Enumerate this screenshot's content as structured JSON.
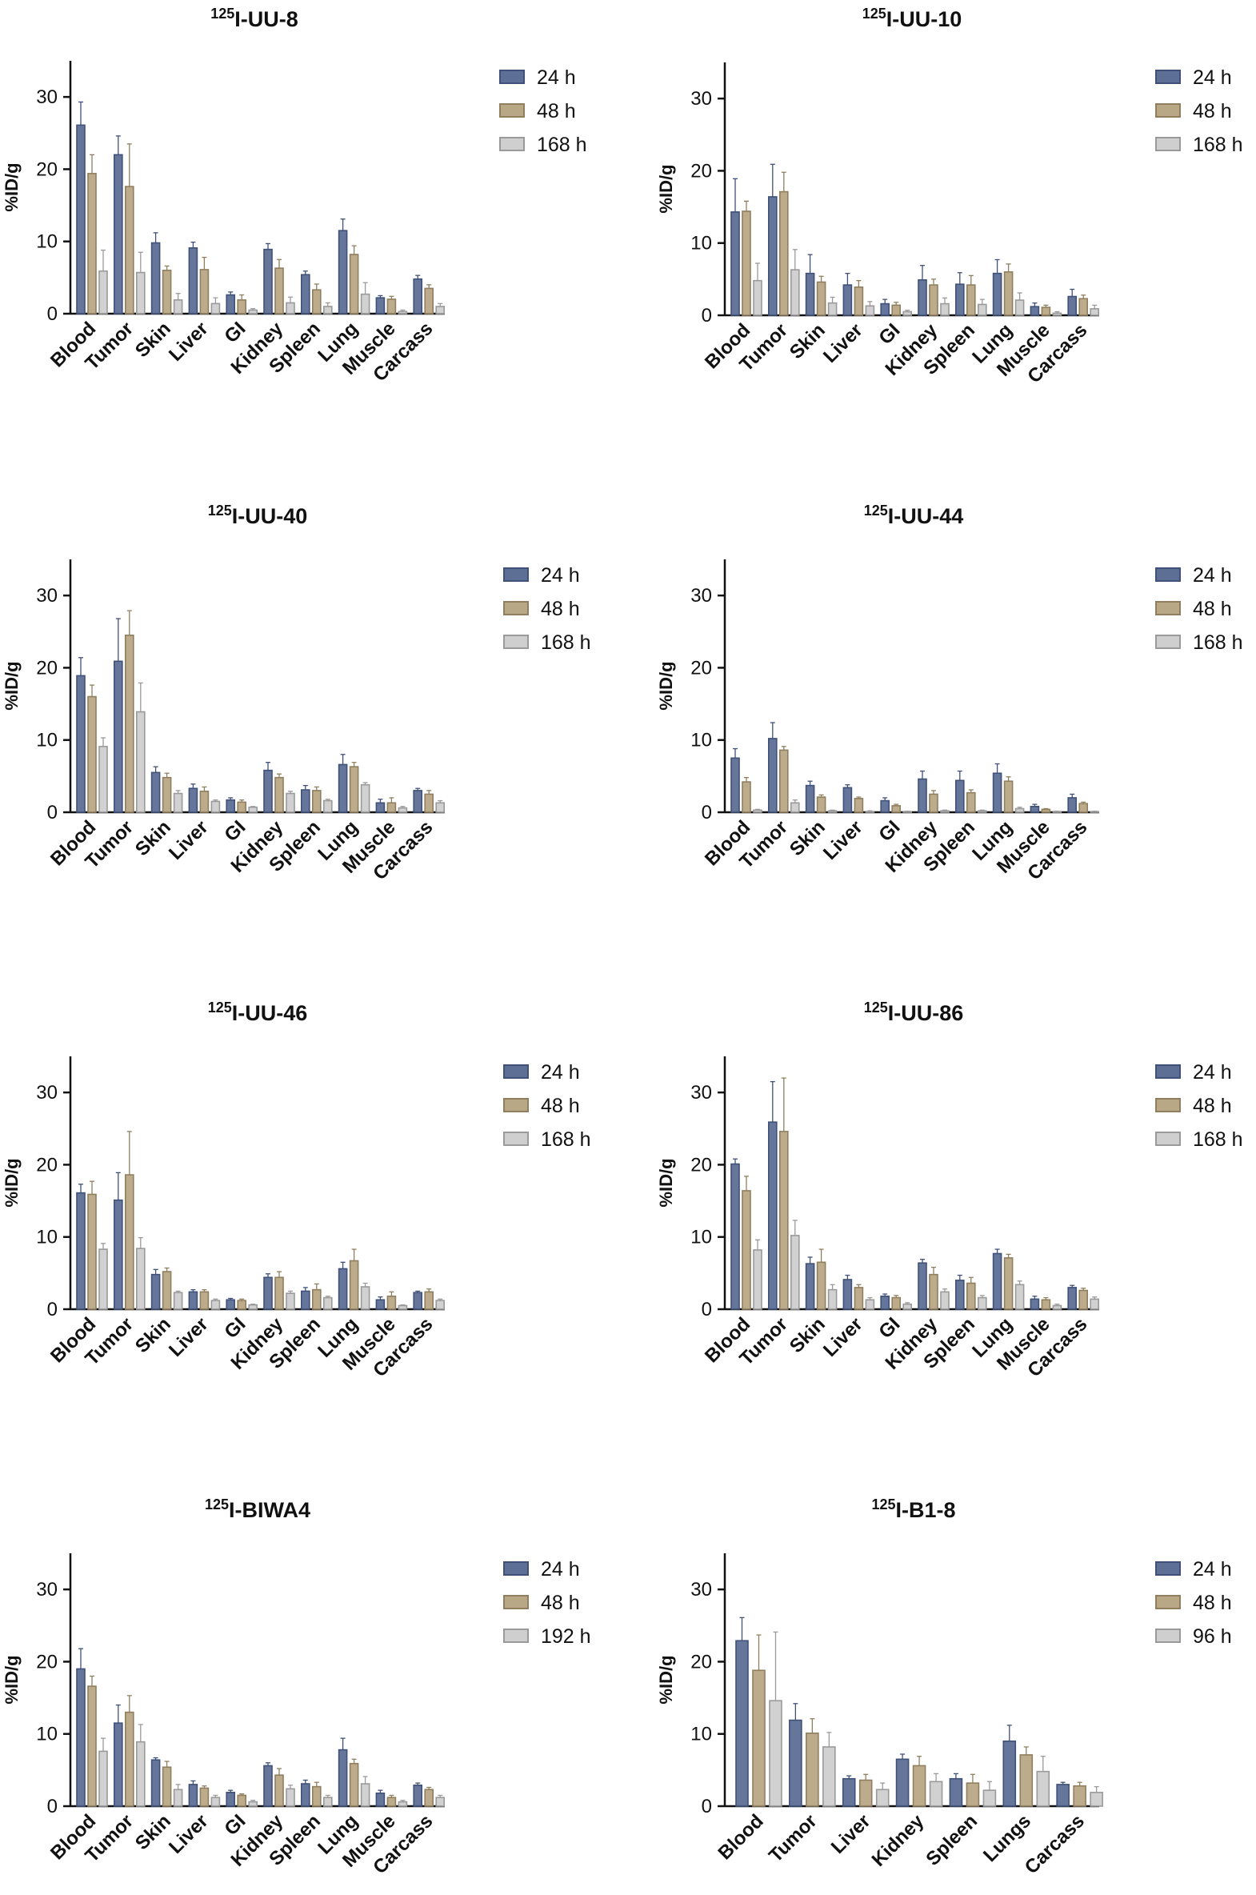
{
  "colors": {
    "24h": "#5e6f96",
    "24h_edge": "#3f5178",
    "48h": "#b9a886",
    "48h_edge": "#8f7f5f",
    "third": "#cfcfcf",
    "third_edge": "#9a9a9a",
    "axis": "#111111"
  },
  "chart_data": [
    {
      "type": "bar",
      "title_sup": "125",
      "title_main": "I-UU-8",
      "ylabel": "%ID/g",
      "ylim": [
        0,
        35
      ],
      "yticks": [
        0,
        10,
        20,
        30
      ],
      "categories": [
        "Blood",
        "Tumor",
        "Skin",
        "Liver",
        "GI",
        "Kidney",
        "Spleen",
        "Lung",
        "Muscle",
        "Carcass"
      ],
      "series": [
        {
          "name": "24 h",
          "values": [
            26.1,
            22.0,
            9.8,
            9.1,
            2.6,
            8.9,
            5.4,
            11.5,
            2.2,
            4.8
          ],
          "errors": [
            3.2,
            2.6,
            1.4,
            0.8,
            0.4,
            0.8,
            0.5,
            1.6,
            0.3,
            0.5
          ]
        },
        {
          "name": "48 h",
          "values": [
            19.4,
            17.6,
            6.0,
            6.1,
            1.9,
            6.3,
            3.3,
            8.2,
            2.0,
            3.5
          ],
          "errors": [
            2.6,
            5.9,
            0.6,
            1.7,
            0.7,
            1.2,
            0.8,
            1.2,
            0.4,
            0.5
          ]
        },
        {
          "name": "168 h",
          "values": [
            5.9,
            5.7,
            1.9,
            1.4,
            0.5,
            1.5,
            1.0,
            2.7,
            0.3,
            1.0
          ],
          "errors": [
            2.9,
            2.8,
            0.9,
            0.8,
            0.2,
            0.8,
            0.5,
            1.6,
            0.2,
            0.4
          ]
        }
      ]
    },
    {
      "type": "bar",
      "title_sup": "125",
      "title_main": "I-UU-10",
      "ylabel": "%ID/g",
      "ylim": [
        0,
        35
      ],
      "yticks": [
        0,
        10,
        20,
        30
      ],
      "categories": [
        "Blood",
        "Tumor",
        "Skin",
        "Liver",
        "GI",
        "Kidney",
        "Spleen",
        "Lung",
        "Muscle",
        "Carcass"
      ],
      "series": [
        {
          "name": "24 h",
          "values": [
            14.3,
            16.4,
            5.8,
            4.2,
            1.6,
            4.9,
            4.3,
            5.8,
            1.2,
            2.6
          ],
          "errors": [
            4.6,
            4.5,
            2.6,
            1.6,
            0.6,
            2.0,
            1.6,
            1.9,
            0.5,
            1.0
          ]
        },
        {
          "name": "48 h",
          "values": [
            14.4,
            17.1,
            4.6,
            3.9,
            1.4,
            4.2,
            4.2,
            6.0,
            1.1,
            2.3
          ],
          "errors": [
            1.4,
            2.7,
            0.8,
            0.9,
            0.4,
            0.8,
            1.3,
            1.1,
            0.3,
            0.5
          ]
        },
        {
          "name": "168 h",
          "values": [
            4.8,
            6.3,
            1.7,
            1.3,
            0.5,
            1.6,
            1.5,
            2.1,
            0.3,
            0.9
          ],
          "errors": [
            2.4,
            2.8,
            0.8,
            0.6,
            0.2,
            0.8,
            0.7,
            1.0,
            0.2,
            0.5
          ]
        }
      ]
    },
    {
      "type": "bar",
      "title_sup": "125",
      "title_main": "I-UU-40",
      "ylabel": "%ID/g",
      "ylim": [
        0,
        35
      ],
      "yticks": [
        0,
        10,
        20,
        30
      ],
      "categories": [
        "Blood",
        "Tumor",
        "Skin",
        "Liver",
        "GI",
        "Kidney",
        "Spleen",
        "Lung",
        "Muscle",
        "Carcass"
      ],
      "series": [
        {
          "name": "24 h",
          "values": [
            18.9,
            20.9,
            5.5,
            3.3,
            1.7,
            5.8,
            3.1,
            6.6,
            1.3,
            3.0
          ],
          "errors": [
            2.5,
            5.9,
            0.8,
            0.6,
            0.3,
            1.1,
            0.6,
            1.4,
            0.5,
            0.3
          ]
        },
        {
          "name": "48 h",
          "values": [
            16.0,
            24.5,
            4.8,
            2.9,
            1.4,
            4.8,
            3.0,
            6.3,
            1.3,
            2.5
          ],
          "errors": [
            1.6,
            3.4,
            0.6,
            0.6,
            0.3,
            0.5,
            0.5,
            0.6,
            0.7,
            0.5
          ]
        },
        {
          "name": "168 h",
          "values": [
            9.1,
            13.9,
            2.6,
            1.5,
            0.7,
            2.6,
            1.6,
            3.8,
            0.6,
            1.3
          ],
          "errors": [
            1.2,
            4.0,
            0.4,
            0.2,
            0.1,
            0.3,
            0.2,
            0.3,
            0.2,
            0.3
          ]
        }
      ]
    },
    {
      "type": "bar",
      "title_sup": "125",
      "title_main": "I-UU-44",
      "ylabel": "%ID/g",
      "ylim": [
        0,
        35
      ],
      "yticks": [
        0,
        10,
        20,
        30
      ],
      "categories": [
        "Blood",
        "Tumor",
        "Skin",
        "Liver",
        "GI",
        "Kidney",
        "Spleen",
        "Lung",
        "Muscle",
        "Carcass"
      ],
      "series": [
        {
          "name": "24 h",
          "values": [
            7.5,
            10.2,
            3.7,
            3.4,
            1.6,
            4.6,
            4.4,
            5.4,
            0.8,
            2.0
          ],
          "errors": [
            1.3,
            2.2,
            0.6,
            0.4,
            0.4,
            1.1,
            1.3,
            1.3,
            0.3,
            0.5
          ]
        },
        {
          "name": "48 h",
          "values": [
            4.2,
            8.6,
            2.1,
            1.9,
            0.9,
            2.5,
            2.7,
            4.3,
            0.4,
            1.2
          ],
          "errors": [
            0.6,
            0.5,
            0.3,
            0.2,
            0.2,
            0.5,
            0.4,
            0.6,
            0.1,
            0.2
          ]
        },
        {
          "name": "168 h",
          "values": [
            0.3,
            1.3,
            0.2,
            0.1,
            0.1,
            0.2,
            0.2,
            0.5,
            0.1,
            0.1
          ],
          "errors": [
            0.1,
            0.4,
            0.1,
            0.1,
            0.05,
            0.1,
            0.1,
            0.2,
            0.05,
            0.05
          ]
        }
      ]
    },
    {
      "type": "bar",
      "title_sup": "125",
      "title_main": "I-UU-46",
      "ylabel": "%ID/g",
      "ylim": [
        0,
        35
      ],
      "yticks": [
        0,
        10,
        20,
        30
      ],
      "categories": [
        "Blood",
        "Tumor",
        "Skin",
        "Liver",
        "GI",
        "Kidney",
        "Spleen",
        "Lung",
        "Muscle",
        "Carcass"
      ],
      "series": [
        {
          "name": "24 h",
          "values": [
            16.1,
            15.1,
            4.8,
            2.4,
            1.3,
            4.4,
            2.5,
            5.6,
            1.3,
            2.3
          ],
          "errors": [
            1.2,
            3.8,
            0.7,
            0.3,
            0.2,
            0.5,
            0.5,
            0.9,
            0.4,
            0.2
          ]
        },
        {
          "name": "48 h",
          "values": [
            15.9,
            18.6,
            5.2,
            2.4,
            1.2,
            4.4,
            2.7,
            6.7,
            1.8,
            2.4
          ],
          "errors": [
            1.8,
            6.0,
            0.5,
            0.3,
            0.2,
            0.8,
            0.8,
            1.6,
            0.6,
            0.4
          ]
        },
        {
          "name": "168 h",
          "values": [
            8.3,
            8.4,
            2.3,
            1.2,
            0.6,
            2.2,
            1.6,
            3.1,
            0.5,
            1.2
          ],
          "errors": [
            0.8,
            1.5,
            0.2,
            0.2,
            0.1,
            0.3,
            0.2,
            0.5,
            0.1,
            0.2
          ]
        }
      ]
    },
    {
      "type": "bar",
      "title_sup": "125",
      "title_main": "I-UU-86",
      "ylabel": "%ID/g",
      "ylim": [
        0,
        35
      ],
      "yticks": [
        0,
        10,
        20,
        30
      ],
      "categories": [
        "Blood",
        "Tumor",
        "Skin",
        "Liver",
        "GI",
        "Kidney",
        "Spleen",
        "Lung",
        "Muscle",
        "Carcass"
      ],
      "series": [
        {
          "name": "24 h",
          "values": [
            20.1,
            25.9,
            6.3,
            4.1,
            1.8,
            6.4,
            4.0,
            7.7,
            1.4,
            3.0
          ],
          "errors": [
            0.7,
            5.6,
            0.9,
            0.6,
            0.3,
            0.5,
            0.7,
            0.6,
            0.4,
            0.3
          ]
        },
        {
          "name": "48 h",
          "values": [
            16.4,
            24.6,
            6.5,
            3.0,
            1.6,
            4.8,
            3.6,
            7.1,
            1.3,
            2.6
          ],
          "errors": [
            2.0,
            7.4,
            1.8,
            0.4,
            0.3,
            1.0,
            0.8,
            0.5,
            0.3,
            0.3
          ]
        },
        {
          "name": "168 h",
          "values": [
            8.2,
            10.2,
            2.7,
            1.3,
            0.7,
            2.4,
            1.6,
            3.4,
            0.5,
            1.4
          ],
          "errors": [
            1.4,
            2.1,
            0.7,
            0.3,
            0.2,
            0.4,
            0.3,
            0.5,
            0.2,
            0.3
          ]
        }
      ]
    },
    {
      "type": "bar",
      "title_sup": "125",
      "title_main": "I-BIWA4",
      "ylabel": "%ID/g",
      "ylim": [
        0,
        35
      ],
      "yticks": [
        0,
        10,
        20,
        30
      ],
      "categories": [
        "Blood",
        "Tumor",
        "Skin",
        "Liver",
        "GI",
        "Kidney",
        "Spleen",
        "Lung",
        "Muscle",
        "Carcass"
      ],
      "series": [
        {
          "name": "24 h",
          "values": [
            19.0,
            11.5,
            6.4,
            3.0,
            1.9,
            5.6,
            3.1,
            7.8,
            1.8,
            2.9
          ],
          "errors": [
            2.8,
            2.5,
            0.3,
            0.5,
            0.3,
            0.4,
            0.5,
            1.6,
            0.4,
            0.3
          ]
        },
        {
          "name": "48 h",
          "values": [
            16.6,
            13.0,
            5.4,
            2.5,
            1.5,
            4.3,
            2.7,
            5.9,
            1.2,
            2.3
          ],
          "errors": [
            1.4,
            2.3,
            0.8,
            0.3,
            0.2,
            0.9,
            0.6,
            0.6,
            0.3,
            0.3
          ]
        },
        {
          "name": "192 h",
          "values": [
            7.6,
            8.9,
            2.3,
            1.2,
            0.6,
            2.4,
            1.2,
            3.1,
            0.6,
            1.2
          ],
          "errors": [
            1.8,
            2.4,
            0.7,
            0.3,
            0.2,
            0.5,
            0.3,
            1.0,
            0.2,
            0.3
          ]
        }
      ]
    },
    {
      "type": "bar",
      "title_sup": "125",
      "title_main": "I-B1-8",
      "ylabel": "%ID/g",
      "ylim": [
        0,
        35
      ],
      "yticks": [
        0,
        10,
        20,
        30
      ],
      "categories": [
        "Blood",
        "Tumor",
        "Liver",
        "Kidney",
        "Spleen",
        "Lungs",
        "Carcass"
      ],
      "series": [
        {
          "name": "24 h",
          "values": [
            22.9,
            11.9,
            3.8,
            6.5,
            3.8,
            9.0,
            3.0
          ],
          "errors": [
            3.2,
            2.3,
            0.4,
            0.7,
            0.7,
            2.2,
            0.3
          ]
        },
        {
          "name": "48 h",
          "values": [
            18.8,
            10.1,
            3.6,
            5.6,
            3.2,
            7.1,
            2.8
          ],
          "errors": [
            4.9,
            2.0,
            0.8,
            1.3,
            1.2,
            1.1,
            0.5
          ]
        },
        {
          "name": "96 h",
          "values": [
            14.6,
            8.2,
            2.3,
            3.4,
            2.2,
            4.8,
            1.9
          ],
          "errors": [
            9.5,
            2.0,
            0.9,
            1.1,
            1.2,
            2.1,
            0.8
          ]
        }
      ]
    }
  ]
}
